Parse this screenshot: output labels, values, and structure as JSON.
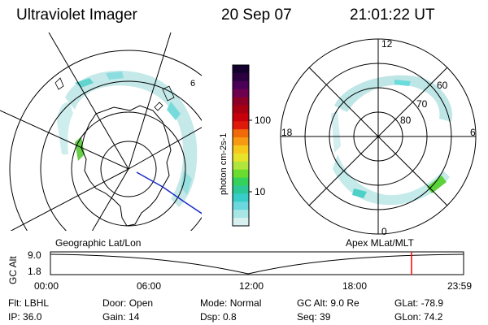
{
  "header": {
    "instrument": "Ultraviolet Imager",
    "date": "20 Sep 07",
    "time": "21:01:22 UT"
  },
  "colorbar": {
    "unit": "photon cm-2s-1",
    "ticks": [
      "100",
      "10"
    ],
    "colors_top_to_bottom": [
      "#14002e",
      "#2a0040",
      "#4b0058",
      "#6e0050",
      "#8c0028",
      "#a80010",
      "#c8000a",
      "#e01a0a",
      "#f06a0a",
      "#f59a12",
      "#f7c81c",
      "#e6e32a",
      "#b0e63c",
      "#6adc2e",
      "#34d25a",
      "#2cc896",
      "#38cdc8",
      "#6ad8dc",
      "#a8e6e6",
      "#d8f0f0"
    ]
  },
  "map_geo": {
    "label": "Geographic Lat/Lon",
    "tick_number": "6"
  },
  "map_mag": {
    "label": "Apex MLat/MLT",
    "lat_labels": [
      "60",
      "70",
      "80"
    ],
    "mlt_labels": {
      "top": "12",
      "left": "18",
      "right": "6",
      "bottom": "0"
    }
  },
  "timeline": {
    "ylabel": "GC Alt",
    "y_ticks": [
      "9.0",
      "1.8"
    ],
    "x_ticks": [
      "00:00",
      "06:00",
      "12:00",
      "18:00",
      "23:59"
    ],
    "marker_color": "#ff0000"
  },
  "info": {
    "row1": [
      {
        "label": "Flt:",
        "value": "LBHL"
      },
      {
        "label": "Door:",
        "value": "Open"
      },
      {
        "label": "Mode:",
        "value": "Normal"
      },
      {
        "label": "GC Alt:",
        "value": "9.0 Re"
      },
      {
        "label": "GLat:",
        "value": "-78.9"
      }
    ],
    "row2": [
      {
        "label": "IP:",
        "value": "36.0"
      },
      {
        "label": "Gain:",
        "value": "14"
      },
      {
        "label": "Dsp:",
        "value": "0.8"
      },
      {
        "label": "Seq:",
        "value": "39"
      },
      {
        "label": "GLon:",
        "value": "74.2"
      }
    ]
  }
}
